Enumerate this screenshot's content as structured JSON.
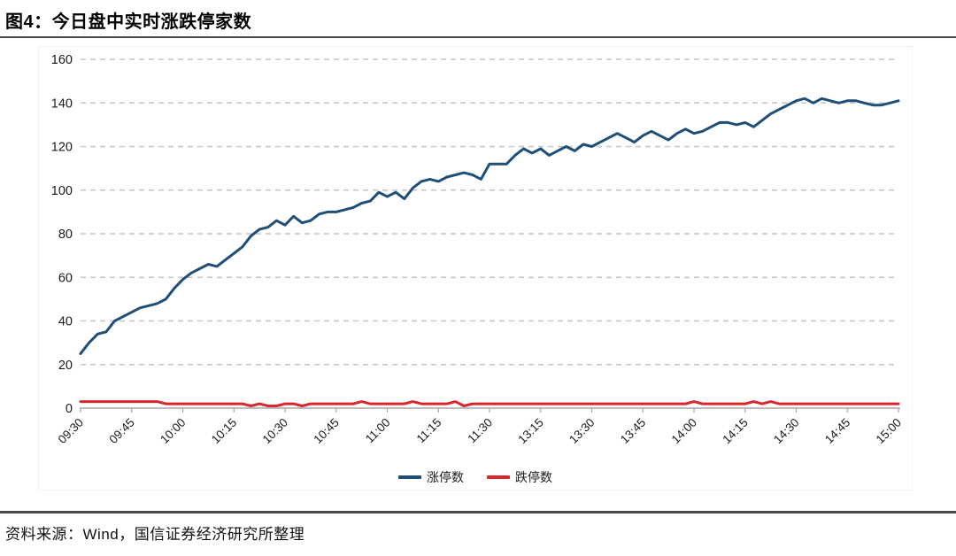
{
  "figure": {
    "title": "图4：今日盘中实时涨跌停家数",
    "source_note": "资料来源：Wind，国信证券经济研究所整理"
  },
  "colors": {
    "limit_up_line": "#1f4e79",
    "limit_down_line": "#d9262d",
    "gridline": "#c6c6c6",
    "axis": "#a6a6a6",
    "divider": "#4a4a4a",
    "label_text": "#1a1a1a"
  },
  "chart_data": {
    "type": "line",
    "title": "今日盘中实时涨跌停家数",
    "ylim": [
      0,
      160
    ],
    "y_ticks": [
      0,
      20,
      40,
      60,
      80,
      100,
      120,
      140,
      160
    ],
    "grid": "horizontal-dashed",
    "legend_position": "bottom-center",
    "x_tick_labels": [
      "09:30",
      "09:45",
      "10:00",
      "10:15",
      "10:30",
      "10:45",
      "11:00",
      "11:15",
      "11:30",
      "13:15",
      "13:30",
      "13:45",
      "14:00",
      "14:15",
      "14:30",
      "14:45",
      "15:00"
    ],
    "series": [
      {
        "key": "limit_up",
        "name": "涨停数",
        "color": "#1f4e79",
        "values": [
          25,
          30,
          34,
          35,
          40,
          42,
          44,
          46,
          47,
          48,
          50,
          55,
          59,
          62,
          64,
          66,
          65,
          68,
          71,
          74,
          79,
          82,
          83,
          86,
          84,
          88,
          85,
          86,
          89,
          90,
          90,
          91,
          92,
          94,
          95,
          99,
          97,
          99,
          96,
          101,
          104,
          105,
          104,
          106,
          107,
          108,
          107,
          105,
          112,
          112,
          112,
          116,
          119,
          117,
          119,
          116,
          118,
          120,
          118,
          121,
          120,
          122,
          124,
          126,
          124,
          122,
          125,
          127,
          125,
          123,
          126,
          128,
          126,
          127,
          129,
          131,
          131,
          130,
          131,
          129,
          132,
          135,
          137,
          139,
          141,
          142,
          140,
          142,
          141,
          140,
          141,
          141,
          140,
          139,
          139,
          140,
          141
        ]
      },
      {
        "key": "limit_down",
        "name": "跌停数",
        "color": "#d9262d",
        "values": [
          3,
          3,
          3,
          3,
          3,
          3,
          3,
          3,
          3,
          3,
          2,
          2,
          2,
          2,
          2,
          2,
          2,
          2,
          2,
          2,
          1,
          2,
          1,
          1,
          2,
          2,
          1,
          2,
          2,
          2,
          2,
          2,
          2,
          3,
          2,
          2,
          2,
          2,
          2,
          3,
          2,
          2,
          2,
          2,
          3,
          1,
          2,
          2,
          2,
          2,
          2,
          2,
          2,
          2,
          2,
          2,
          2,
          2,
          2,
          2,
          2,
          2,
          2,
          2,
          2,
          2,
          2,
          2,
          2,
          2,
          2,
          2,
          3,
          2,
          2,
          2,
          2,
          2,
          2,
          3,
          2,
          3,
          2,
          2,
          2,
          2,
          2,
          2,
          2,
          2,
          2,
          2,
          2,
          2,
          2,
          2,
          2
        ]
      }
    ]
  }
}
